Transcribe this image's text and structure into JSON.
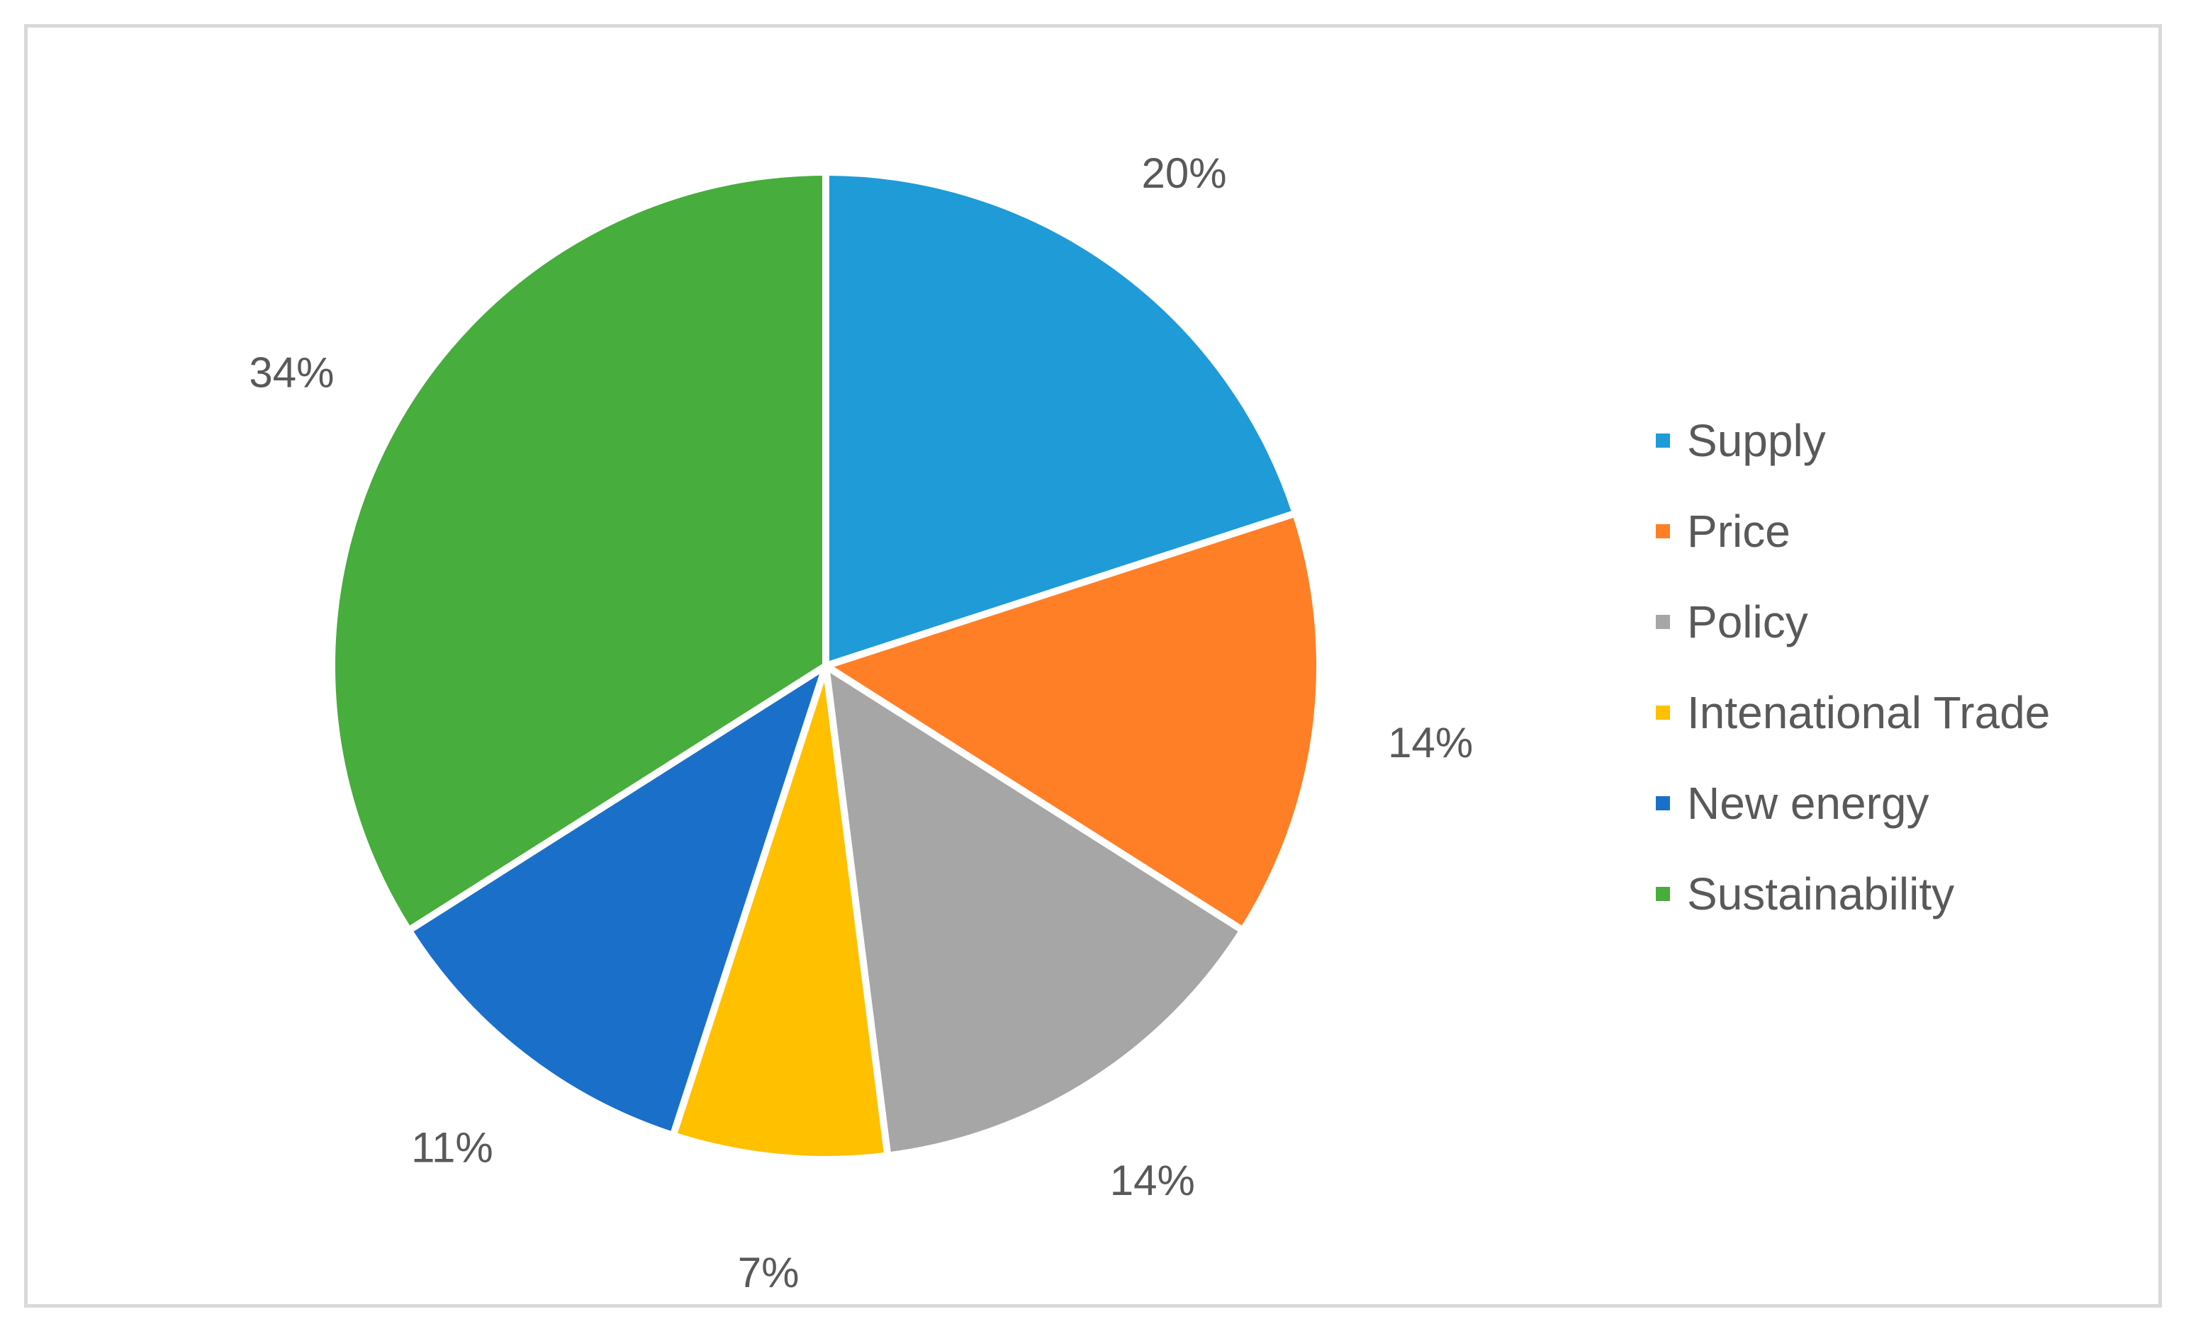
{
  "chart_data": {
    "type": "pie",
    "categories": [
      "Supply",
      "Price",
      "Policy",
      "Intenational Trade",
      "New energy",
      "Sustainability"
    ],
    "values": [
      20,
      14,
      14,
      7,
      11,
      34
    ],
    "value_labels": [
      "20%",
      "14%",
      "14%",
      "7%",
      "11%",
      "34%"
    ],
    "colors": [
      "#1f9bd8",
      "#ff7f27",
      "#a6a6a6",
      "#ffc000",
      "#1a70c8",
      "#47ad3c"
    ],
    "start_angle_deg": 0,
    "direction": "clockwise",
    "legend_position": "right"
  }
}
